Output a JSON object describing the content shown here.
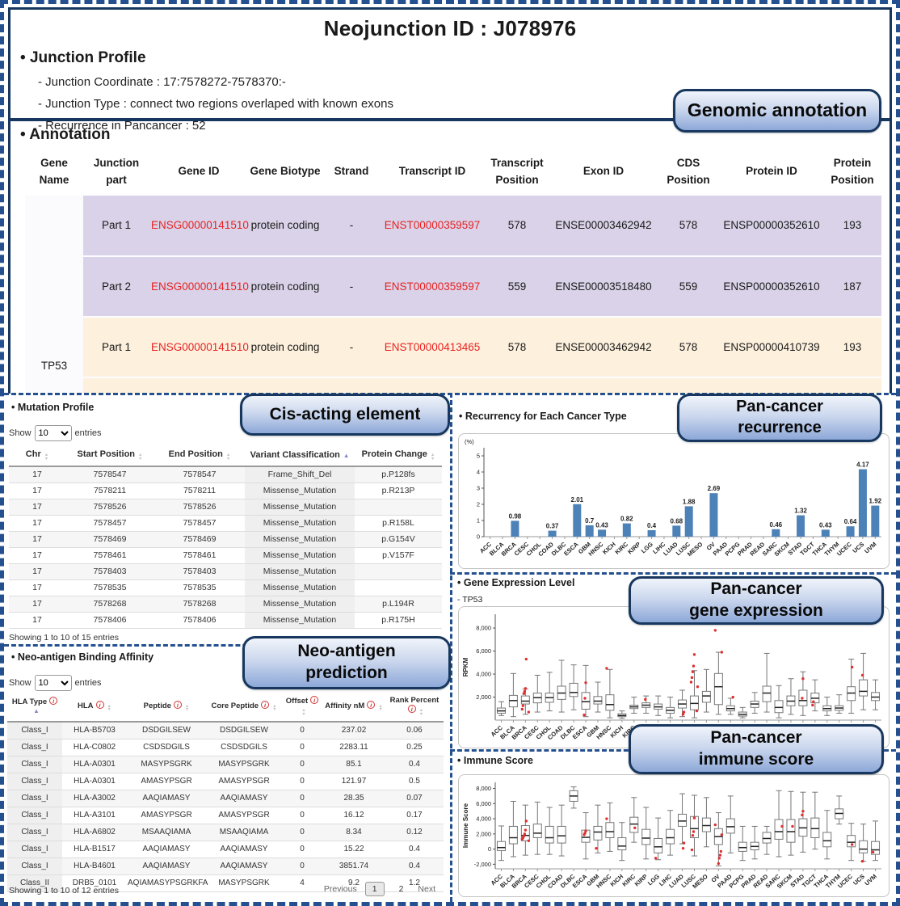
{
  "page": {
    "title": "Neojunction ID : J078976"
  },
  "icons": {
    "info": "i",
    "sort_asc": "▲",
    "sort_desc": "▼"
  },
  "junction_profile": {
    "heading": "Junction Profile",
    "lines": [
      "- Junction Coordinate : 17:7578272-7578370:-",
      "- Junction Type : connect two regions overlaped with known exons",
      "- Recurrence in Pancancer : 52"
    ]
  },
  "annotation": {
    "heading": "Annotation",
    "columns": [
      "Gene Name",
      "Junction part",
      "Gene ID",
      "Gene Biotype",
      "Strand",
      "Transcript ID",
      "Transcript Position",
      "Exon ID",
      "CDS Position",
      "Protein ID",
      "Protein Position"
    ],
    "gene_name": "TP53",
    "row_groups": [
      "purple",
      "purple",
      "cream",
      "cream"
    ],
    "rows": [
      [
        "Part 1",
        "ENSG00000141510",
        "protein coding",
        "-",
        "ENST00000359597",
        "578",
        "ENSE00003462942",
        "578",
        "ENSP00000352610",
        "193"
      ],
      [
        "Part 2",
        "ENSG00000141510",
        "protein coding",
        "-",
        "ENST00000359597",
        "559",
        "ENSE00003518480",
        "559",
        "ENSP00000352610",
        "187"
      ],
      [
        "Part 1",
        "ENSG00000141510",
        "protein coding",
        "-",
        "ENST00000413465",
        "578",
        "ENSE00003462942",
        "578",
        "ENSP00000410739",
        "193"
      ],
      [
        "Part 2",
        "ENSG00000141510",
        "protein coding",
        "-",
        "ENST00000413465",
        "559",
        "ENSE00003518480",
        "559",
        "ENSP00000410739",
        "187"
      ]
    ]
  },
  "callouts": {
    "genomic": {
      "lines": [
        "Genomic annotation"
      ]
    },
    "cis": {
      "lines": [
        "Cis-acting element"
      ]
    },
    "pan_recurrence": {
      "lines": [
        "Pan-cancer",
        "recurrence"
      ]
    },
    "neo_prediction": {
      "lines": [
        "Neo-antigen",
        "prediction"
      ]
    },
    "pan_gene_expression": {
      "lines": [
        "Pan-cancer",
        "gene expression"
      ]
    },
    "pan_immune_score": {
      "lines": [
        "Pan-cancer",
        "immune score"
      ]
    }
  },
  "mutation_profile": {
    "heading": "Mutation Profile",
    "show_label": "Show",
    "entries_label": "entries",
    "page_size": "10",
    "columns": [
      "Chr",
      "Start Position",
      "End Position",
      "Variant Classification",
      "Protein Change"
    ],
    "sorted_column": 3,
    "rows": [
      [
        "17",
        "7578547",
        "7578547",
        "Frame_Shift_Del",
        "p.P128fs"
      ],
      [
        "17",
        "7578211",
        "7578211",
        "Missense_Mutation",
        "p.R213P"
      ],
      [
        "17",
        "7578526",
        "7578526",
        "Missense_Mutation",
        ""
      ],
      [
        "17",
        "7578457",
        "7578457",
        "Missense_Mutation",
        "p.R158L"
      ],
      [
        "17",
        "7578469",
        "7578469",
        "Missense_Mutation",
        "p.G154V"
      ],
      [
        "17",
        "7578461",
        "7578461",
        "Missense_Mutation",
        "p.V157F"
      ],
      [
        "17",
        "7578403",
        "7578403",
        "Missense_Mutation",
        ""
      ],
      [
        "17",
        "7578535",
        "7578535",
        "Missense_Mutation",
        ""
      ],
      [
        "17",
        "7578268",
        "7578268",
        "Missense_Mutation",
        "p.L194R"
      ],
      [
        "17",
        "7578406",
        "7578406",
        "Missense_Mutation",
        "p.R175H"
      ]
    ],
    "footer": "Showing 1 to 10 of 15 entries"
  },
  "neoantigen": {
    "heading": "Neo-antigen Binding Affinity",
    "show_label": "Show",
    "entries_label": "entries",
    "page_size": "10",
    "search_label": "Search:",
    "search_value": "",
    "columns": [
      "HLA Type",
      "HLA",
      "Peptide",
      "Core Peptide",
      "Offset",
      "Affinity nM",
      "Rank Percent"
    ],
    "sorted_column": 0,
    "rows": [
      [
        "Class_I",
        "HLA-B5703",
        "DSDGILSEW",
        "DSDGILSEW",
        "0",
        "237.02",
        "0.06"
      ],
      [
        "Class_I",
        "HLA-C0802",
        "CSDSDGILS",
        "CSDSDGILS",
        "0",
        "2283.11",
        "0.25"
      ],
      [
        "Class_I",
        "HLA-A0301",
        "MASYPSGRK",
        "MASYPSGRK",
        "0",
        "85.1",
        "0.4"
      ],
      [
        "Class_I",
        "HLA-A0301",
        "AMASYPSGR",
        "AMASYPSGR",
        "0",
        "121.97",
        "0.5"
      ],
      [
        "Class_I",
        "HLA-A3002",
        "AAQIAMASY",
        "AAQIAMASY",
        "0",
        "28.35",
        "0.07"
      ],
      [
        "Class_I",
        "HLA-A3101",
        "AMASYPSGR",
        "AMASYPSGR",
        "0",
        "16.12",
        "0.17"
      ],
      [
        "Class_I",
        "HLA-A6802",
        "MSAAQIAMA",
        "MSAAQIAMA",
        "0",
        "8.34",
        "0.12"
      ],
      [
        "Class_I",
        "HLA-B1517",
        "AAQIAMASY",
        "AAQIAMASY",
        "0",
        "15.22",
        "0.4"
      ],
      [
        "Class_I",
        "HLA-B4601",
        "AAQIAMASY",
        "AAQIAMASY",
        "0",
        "3851.74",
        "0.4"
      ],
      [
        "Class_II",
        "DRB5_0101",
        "AQIAMASYPSGRKFA",
        "MASYPSGRK",
        "4",
        "9.2",
        "1.2"
      ]
    ],
    "footer": "Showing 1 to 10 of 12 entries",
    "pagination": {
      "previous": "Previous",
      "pages": [
        "1",
        "2"
      ],
      "active": "1",
      "next": "Next"
    }
  },
  "chart_data": [
    {
      "type": "bar",
      "title": "Recurrency for Each Cancer Type",
      "unit": "(%)",
      "ylim": [
        0,
        5.5
      ],
      "yticks": [
        0,
        1,
        2,
        3,
        4,
        5
      ],
      "ytick_labels": [
        "0",
        "1",
        "2",
        "3",
        "4",
        "5"
      ],
      "bar_color": "#4d82b8",
      "categories": [
        "ACC",
        "BLCA",
        "BRCA",
        "CESC",
        "CHOL",
        "COAD",
        "DLBC",
        "ESCA",
        "GBM",
        "HNSC",
        "KICH",
        "KIRC",
        "KIRP",
        "LGG",
        "LIHC",
        "LUAD",
        "LUSC",
        "MESO",
        "OV",
        "PAAD",
        "PCPG",
        "PRAD",
        "READ",
        "SARC",
        "SKCM",
        "STAD",
        "TGCT",
        "THCA",
        "THYM",
        "UCEC",
        "UCS",
        "UVM"
      ],
      "values": [
        0,
        0,
        0.98,
        0,
        0,
        0.37,
        0,
        2.01,
        0.7,
        0.43,
        0,
        0.82,
        0,
        0.4,
        0,
        0.68,
        1.88,
        0,
        2.69,
        0,
        0,
        0,
        0,
        0.46,
        0,
        1.32,
        0,
        0.43,
        0,
        0.64,
        4.17,
        1.92
      ],
      "labels": [
        "",
        "",
        "0.98",
        "",
        "",
        "0.37",
        "",
        "2.01",
        "0.7",
        "0.43",
        "",
        "0.82",
        "",
        "0.4",
        "",
        "0.68",
        "1.88",
        "",
        "2.69",
        "",
        "",
        "",
        "",
        "0.46",
        "",
        "1.32",
        "",
        "0.43",
        "",
        "0.64",
        "4.17",
        "1.92"
      ]
    },
    {
      "type": "boxplot",
      "title": "Gene Expression Level",
      "subtitle": "- TP53",
      "ylabel": "RPKM",
      "ylim": [
        0,
        9200
      ],
      "yticks": [
        2000,
        4000,
        6000,
        8000
      ],
      "ytick_labels": [
        "2,000",
        "4,000",
        "6,000",
        "8,000"
      ],
      "outlier_color": "#e03030",
      "categories": [
        "ACC",
        "BLCA",
        "BRCA",
        "CESC",
        "CHOL",
        "COAD",
        "DLBC",
        "ESCA",
        "GBM",
        "HNSC",
        "KICH",
        "KIRC",
        "KIRP",
        "LGG",
        "LIHC",
        "LUAD",
        "LUSC",
        "MESO",
        "OV",
        "PAAD",
        "PCPG",
        "PRAD",
        "READ",
        "SARC",
        "SKCM",
        "STAD",
        "TGCT",
        "THCA",
        "THYM",
        "UCEC",
        "UCS",
        "UVM"
      ],
      "boxes": [
        [
          400,
          600,
          800,
          1050,
          1600
        ],
        [
          300,
          1150,
          1700,
          2150,
          4050
        ],
        [
          500,
          1400,
          1650,
          2100,
          2700
        ],
        [
          700,
          1500,
          1950,
          2350,
          3900
        ],
        [
          800,
          1550,
          1950,
          2350,
          4150
        ],
        [
          700,
          1800,
          2350,
          2950,
          5200
        ],
        [
          900,
          2050,
          2400,
          3200,
          4800
        ],
        [
          300,
          950,
          1600,
          2400,
          4750
        ],
        [
          700,
          1400,
          1650,
          2050,
          3300
        ],
        [
          200,
          850,
          1350,
          2200,
          4400
        ],
        [
          150,
          300,
          400,
          550,
          800
        ],
        [
          600,
          1000,
          1150,
          1300,
          2000
        ],
        [
          600,
          1100,
          1300,
          1500,
          2100
        ],
        [
          400,
          950,
          1150,
          1400,
          2100
        ],
        [
          200,
          600,
          850,
          1100,
          2000
        ],
        [
          300,
          1050,
          1400,
          1750,
          2600
        ],
        [
          200,
          900,
          1450,
          2100,
          4300
        ],
        [
          700,
          1550,
          2100,
          2500,
          4400
        ],
        [
          500,
          1350,
          2900,
          4050,
          5900
        ],
        [
          500,
          800,
          1000,
          1250,
          1900
        ],
        [
          200,
          350,
          500,
          700,
          1100
        ],
        [
          600,
          1100,
          1400,
          1650,
          2400
        ],
        [
          700,
          1600,
          2350,
          2950,
          5800
        ],
        [
          200,
          650,
          1100,
          1700,
          3000
        ],
        [
          500,
          1250,
          1650,
          2100,
          3600
        ],
        [
          400,
          1250,
          1700,
          2600,
          4200
        ],
        [
          800,
          1500,
          1900,
          2350,
          3500
        ],
        [
          400,
          800,
          1000,
          1250,
          2000
        ],
        [
          600,
          850,
          1050,
          1250,
          2200
        ],
        [
          600,
          1700,
          2350,
          2900,
          5300
        ],
        [
          900,
          2100,
          2500,
          3500,
          5800
        ],
        [
          900,
          1700,
          2000,
          2400,
          3500
        ]
      ],
      "outliers": [
        [],
        [],
        [
          5300,
          2750,
          2500,
          2300,
          1250,
          950,
          700
        ],
        [],
        [],
        [],
        [],
        [
          3250,
          1900,
          450
        ],
        [],
        [
          4500
        ],
        [],
        [],
        [
          1800
        ],
        [],
        [],
        [
          700,
          500
        ],
        [
          5700,
          4700,
          4200,
          3700,
          3300,
          2900,
          800
        ],
        [],
        [
          7800,
          5900
        ],
        [
          2000
        ],
        [],
        [],
        [],
        [],
        [],
        [
          3600,
          1900
        ],
        [
          1600,
          1300
        ],
        [],
        [],
        [
          4600
        ],
        [
          3900
        ],
        []
      ]
    },
    {
      "type": "boxplot",
      "title": "Immune Score",
      "ylabel": "Immune Score",
      "ylim": [
        -2600,
        8800
      ],
      "yticks": [
        -2000,
        0,
        2000,
        4000,
        6000,
        8000
      ],
      "ytick_labels": [
        "-2,000",
        "0",
        "2,000",
        "4,000",
        "6,000",
        "8,000"
      ],
      "outlier_color": "#e03030",
      "categories": [
        "ACC",
        "BLCA",
        "BRCA",
        "CESC",
        "CHOL",
        "COAD",
        "DLBC",
        "ESCA",
        "GBM",
        "HNSC",
        "KICH",
        "KIRC",
        "KIRP",
        "LGG",
        "LIHC",
        "LUAD",
        "LUSC",
        "MESO",
        "OV",
        "PAAD",
        "PCPG",
        "PRAD",
        "READ",
        "SARC",
        "SKCM",
        "STAD",
        "TGCT",
        "THCA",
        "THYM",
        "UCEC",
        "UCS",
        "UVM"
      ],
      "boxes": [
        [
          -1500,
          -200,
          200,
          1000,
          3050
        ],
        [
          -1000,
          700,
          1500,
          3000,
          6300
        ],
        [
          -800,
          1100,
          1800,
          3100,
          5800
        ],
        [
          -700,
          1500,
          2100,
          3300,
          6200
        ],
        [
          -700,
          800,
          1500,
          3000,
          5500
        ],
        [
          -900,
          800,
          1750,
          3000,
          5800
        ],
        [
          5400,
          6300,
          7000,
          7700,
          8200
        ],
        [
          -1300,
          900,
          1550,
          2500,
          4800
        ],
        [
          -500,
          1200,
          2250,
          3000,
          5800
        ],
        [
          -300,
          1500,
          2300,
          3500,
          6100
        ],
        [
          -1500,
          -100,
          400,
          1500,
          3500
        ],
        [
          900,
          2200,
          3300,
          4200,
          6800
        ],
        [
          -1300,
          600,
          1450,
          2600,
          5500
        ],
        [
          -1400,
          -500,
          300,
          1400,
          4100
        ],
        [
          -800,
          700,
          1500,
          2600,
          5100
        ],
        [
          700,
          3000,
          3700,
          4600,
          7300
        ],
        [
          -900,
          1500,
          2700,
          4300,
          7100
        ],
        [
          300,
          2300,
          3100,
          4100,
          6800
        ],
        [
          -2200,
          600,
          1650,
          2700,
          4800
        ],
        [
          -500,
          2100,
          2950,
          4000,
          7000
        ],
        [
          -1500,
          -300,
          200,
          900,
          3000
        ],
        [
          -1300,
          -100,
          350,
          900,
          3000
        ],
        [
          -700,
          800,
          1400,
          2200,
          3000
        ],
        [
          -1000,
          1300,
          2300,
          3900,
          7700
        ],
        [
          -800,
          900,
          2300,
          3900,
          7600
        ],
        [
          -400,
          1700,
          2800,
          4000,
          7500
        ],
        [
          0,
          1500,
          2700,
          4100,
          7500
        ],
        [
          -1300,
          300,
          1100,
          2200,
          5100
        ],
        [
          3300,
          4000,
          4700,
          5300,
          7000
        ],
        [
          -1500,
          300,
          900,
          1800,
          3400
        ],
        [
          -1600,
          -500,
          0,
          1100,
          3300
        ],
        [
          -1500,
          -700,
          -100,
          1000,
          3700
        ]
      ],
      "outliers": [
        [],
        [],
        [
          3700,
          2500,
          2000,
          1700,
          1500,
          1300,
          1100
        ],
        [],
        [],
        [],
        [],
        [
          2400,
          2100,
          1900
        ],
        [
          100
        ],
        [
          4000
        ],
        [],
        [
          2800
        ],
        [],
        [
          -1200
        ],
        [],
        [
          800,
          100
        ],
        [
          4100,
          2300,
          1800,
          -100
        ],
        [],
        [
          3200,
          1900,
          -300,
          -800,
          -1200,
          -1900
        ],
        [],
        [],
        [],
        [],
        [
          3000
        ],
        [
          3000
        ],
        [
          5000,
          4500
        ],
        [],
        [],
        [],
        [
          600
        ],
        [
          -1600
        ],
        [
          -400
        ]
      ]
    }
  ]
}
